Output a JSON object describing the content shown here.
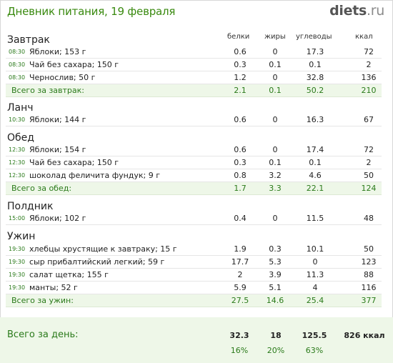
{
  "header": {
    "title": "Дневник питания, 19 февраля",
    "logo_main": "diets",
    "logo_suffix": ".ru"
  },
  "columns": {
    "protein": "белки",
    "fat": "жиры",
    "carbs": "углеводы",
    "kcal": "ккал"
  },
  "meals": [
    {
      "title": "Завтрак",
      "items": [
        {
          "time": "08:30",
          "food": "Яблоки; 153 г",
          "protein": "0.6",
          "fat": "0",
          "carbs": "17.3",
          "kcal": "72"
        },
        {
          "time": "08:30",
          "food": "Чай без сахара; 150 г",
          "protein": "0.3",
          "fat": "0.1",
          "carbs": "0.1",
          "kcal": "2"
        },
        {
          "time": "08:30",
          "food": "Чернослив; 50 г",
          "protein": "1.2",
          "fat": "0",
          "carbs": "32.8",
          "kcal": "136"
        }
      ],
      "total": {
        "label": "Всего за завтрак:",
        "protein": "2.1",
        "fat": "0.1",
        "carbs": "50.2",
        "kcal": "210"
      }
    },
    {
      "title": "Ланч",
      "items": [
        {
          "time": "10:30",
          "food": "Яблоки; 144 г",
          "protein": "0.6",
          "fat": "0",
          "carbs": "16.3",
          "kcal": "67"
        }
      ]
    },
    {
      "title": "Обед",
      "items": [
        {
          "time": "12:30",
          "food": "Яблоки; 154 г",
          "protein": "0.6",
          "fat": "0",
          "carbs": "17.4",
          "kcal": "72"
        },
        {
          "time": "12:30",
          "food": "Чай без сахара; 150 г",
          "protein": "0.3",
          "fat": "0.1",
          "carbs": "0.1",
          "kcal": "2"
        },
        {
          "time": "12:30",
          "food": "шоколад феличита фундук; 9 г",
          "protein": "0.8",
          "fat": "3.2",
          "carbs": "4.6",
          "kcal": "50"
        }
      ],
      "total": {
        "label": "Всего за обед:",
        "protein": "1.7",
        "fat": "3.3",
        "carbs": "22.1",
        "kcal": "124"
      }
    },
    {
      "title": "Полдник",
      "items": [
        {
          "time": "15:00",
          "food": "Яблоки; 102 г",
          "protein": "0.4",
          "fat": "0",
          "carbs": "11.5",
          "kcal": "48"
        }
      ]
    },
    {
      "title": "Ужин",
      "items": [
        {
          "time": "19:30",
          "food": "хлебцы хрустящие к завтраку; 15 г",
          "protein": "1.9",
          "fat": "0.3",
          "carbs": "10.1",
          "kcal": "50"
        },
        {
          "time": "19:30",
          "food": "сыр прибалтийский легкий; 59 г",
          "protein": "17.7",
          "fat": "5.3",
          "carbs": "0",
          "kcal": "123"
        },
        {
          "time": "19:30",
          "food": "салат щетка; 155 г",
          "protein": "2",
          "fat": "3.9",
          "carbs": "11.3",
          "kcal": "88"
        },
        {
          "time": "19:30",
          "food": "манты; 52 г",
          "protein": "5.9",
          "fat": "5.1",
          "carbs": "4",
          "kcal": "116"
        }
      ],
      "total": {
        "label": "Всего за ужин:",
        "protein": "27.5",
        "fat": "14.6",
        "carbs": "25.4",
        "kcal": "377"
      }
    }
  ],
  "day_total": {
    "label": "Всего за день:",
    "protein": "32.3",
    "fat": "18",
    "carbs": "125.5",
    "kcal": "826 ккал",
    "protein_pct": "16%",
    "fat_pct": "20%",
    "carbs_pct": "63%"
  }
}
